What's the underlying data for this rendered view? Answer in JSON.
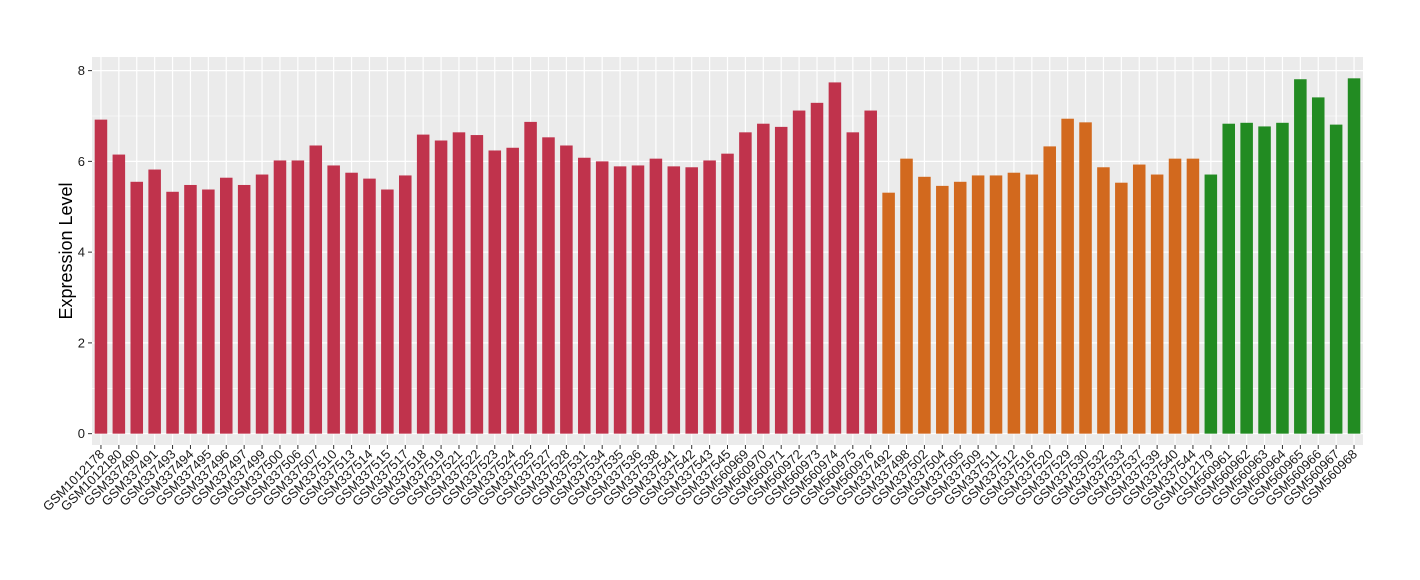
{
  "chart_data": {
    "type": "bar",
    "title": "",
    "xlabel": "",
    "ylabel": "Expression Level",
    "ylim": [
      0,
      8.3
    ],
    "yticks": [
      0,
      2,
      4,
      6,
      8
    ],
    "grid": true,
    "legend": "none",
    "panel_background": "#ebebeb",
    "grid_color": "#ffffff",
    "series": [
      {
        "color": "#c0334c",
        "categories": [
          "GSM1012178",
          "GSM1012180",
          "GSM337490",
          "GSM337491",
          "GSM337493",
          "GSM337494",
          "GSM337495",
          "GSM337496",
          "GSM337497",
          "GSM337499",
          "GSM337500",
          "GSM337506",
          "GSM337507",
          "GSM337510",
          "GSM337513",
          "GSM337514",
          "GSM337515",
          "GSM337517",
          "GSM337518",
          "GSM337519",
          "GSM337521",
          "GSM337522",
          "GSM337523",
          "GSM337524",
          "GSM337525",
          "GSM337527",
          "GSM337528",
          "GSM337531",
          "GSM337534",
          "GSM337535",
          "GSM337536",
          "GSM337538",
          "GSM337541",
          "GSM337542",
          "GSM337543",
          "GSM337545",
          "GSM560969",
          "GSM560970",
          "GSM560971",
          "GSM560972",
          "GSM560973",
          "GSM560974",
          "GSM560975",
          "GSM560976"
        ],
        "values": [
          6.92,
          6.15,
          5.55,
          5.82,
          5.33,
          5.48,
          5.38,
          5.64,
          5.48,
          5.71,
          6.02,
          6.02,
          6.35,
          5.91,
          5.75,
          5.62,
          5.38,
          5.69,
          6.59,
          6.46,
          6.64,
          6.58,
          6.24,
          6.3,
          6.87,
          6.53,
          6.35,
          6.08,
          6.0,
          5.89,
          5.91,
          6.06,
          5.89,
          5.87,
          6.02,
          6.17,
          6.64,
          6.83,
          6.76,
          7.12,
          7.29,
          7.74,
          6.64,
          7.12
        ]
      },
      {
        "color": "#d2691e",
        "categories": [
          "GSM337492",
          "GSM337498",
          "GSM337502",
          "GSM337504",
          "GSM337505",
          "GSM337509",
          "GSM337511",
          "GSM337512",
          "GSM337516",
          "GSM337520",
          "GSM337529",
          "GSM337530",
          "GSM337532",
          "GSM337533",
          "GSM337537",
          "GSM337539",
          "GSM337540",
          "GSM337544"
        ],
        "values": [
          5.31,
          6.06,
          5.66,
          5.46,
          5.55,
          5.69,
          5.69,
          5.75,
          5.71,
          6.33,
          6.94,
          6.86,
          5.87,
          5.53,
          5.93,
          5.71,
          6.06,
          6.06
        ]
      },
      {
        "color": "#228b22",
        "categories": [
          "GSM1012179",
          "GSM560961",
          "GSM560962",
          "GSM560963",
          "GSM560964",
          "GSM560965",
          "GSM560966",
          "GSM560967",
          "GSM560968"
        ],
        "values": [
          5.71,
          6.83,
          6.85,
          6.77,
          6.85,
          7.81,
          7.41,
          6.81,
          7.83
        ]
      }
    ]
  }
}
